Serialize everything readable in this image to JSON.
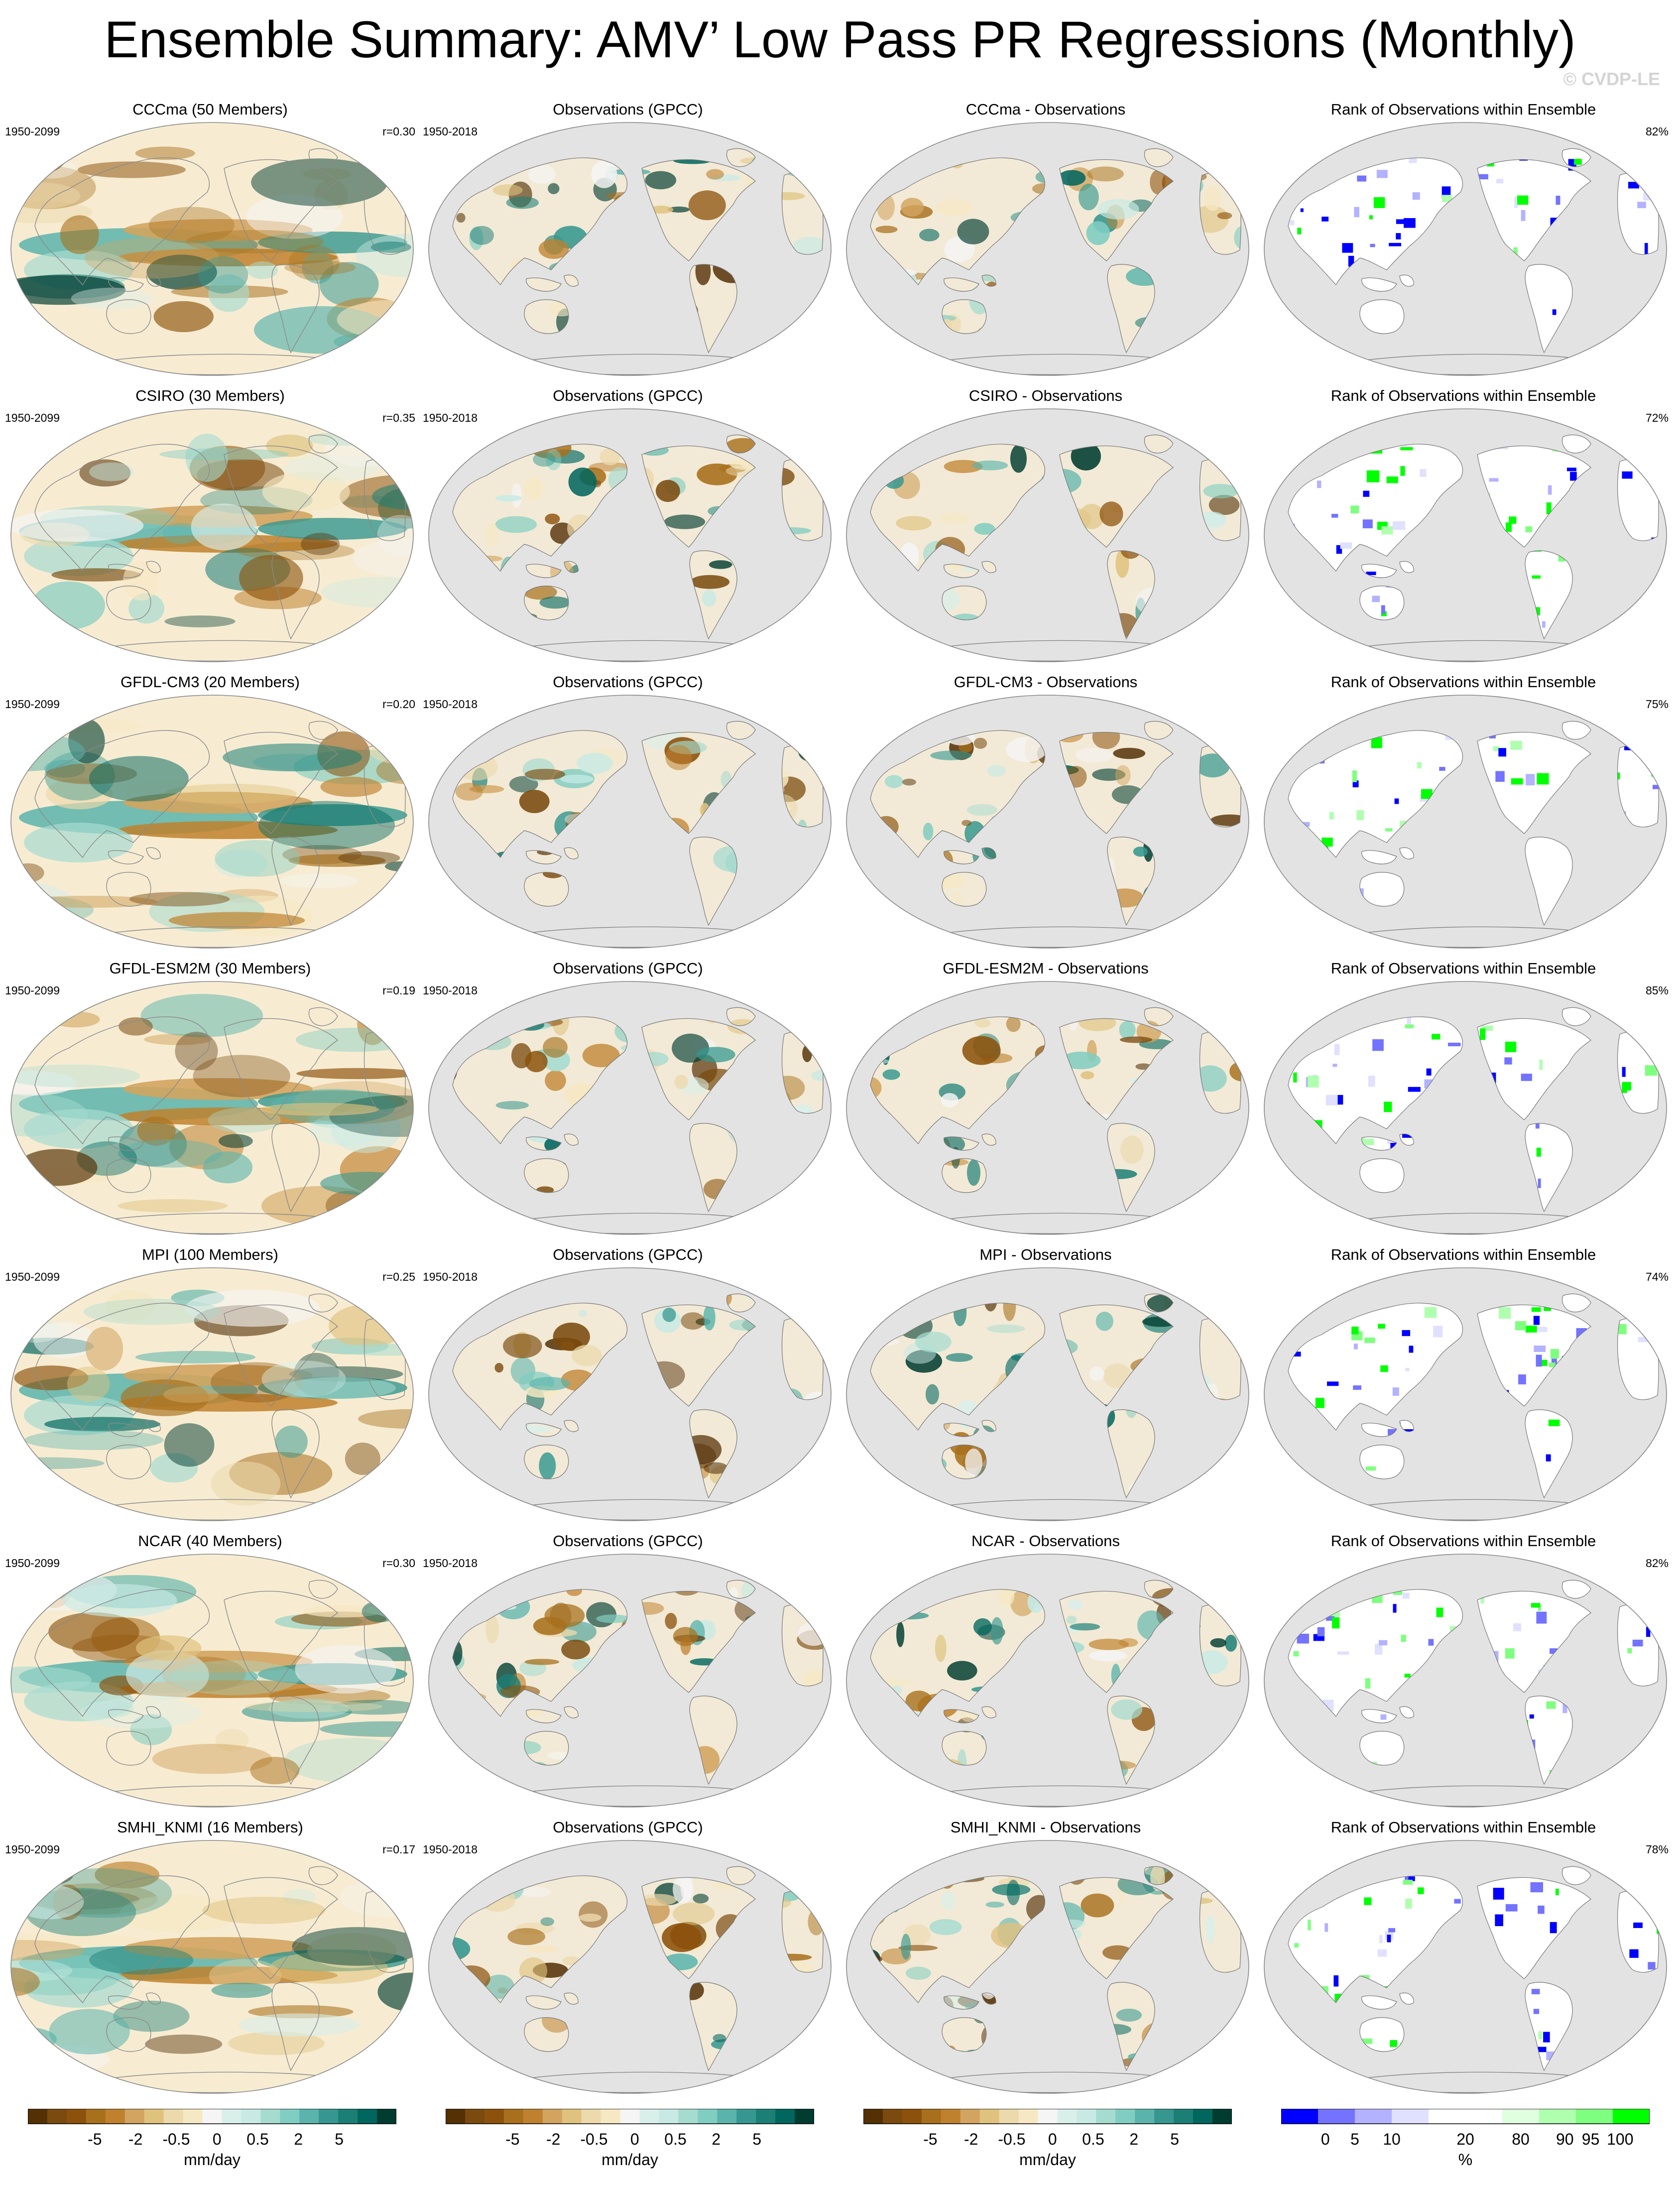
{
  "title": "Ensemble Summary: AMV’ Low Pass PR Regressions (Monthly)",
  "watermark": "© CVDP-LE",
  "column_titles": {
    "obs": "Observations (GPCC)",
    "rank": "Rank of Observations within Ensemble"
  },
  "periods": {
    "model": "1950-2099",
    "obs": "1950-2018"
  },
  "rows": [
    {
      "ens": "CCCma (50 Members)",
      "diff": "CCCma - Observations",
      "r": "r=0.30",
      "rank_pct": "82%"
    },
    {
      "ens": "CSIRO (30 Members)",
      "diff": "CSIRO - Observations",
      "r": "r=0.35",
      "rank_pct": "72%"
    },
    {
      "ens": "GFDL-CM3 (20 Members)",
      "diff": "GFDL-CM3 - Observations",
      "r": "r=0.20",
      "rank_pct": "75%"
    },
    {
      "ens": "GFDL-ESM2M (30 Members)",
      "diff": "GFDL-ESM2M - Observations",
      "r": "r=0.19",
      "rank_pct": "85%"
    },
    {
      "ens": "MPI (100 Members)",
      "diff": "MPI - Observations",
      "r": "r=0.25",
      "rank_pct": "74%"
    },
    {
      "ens": "NCAR (40 Members)",
      "diff": "NCAR - Observations",
      "r": "r=0.30",
      "rank_pct": "82%"
    },
    {
      "ens": "SMHI_KNMI (16 Members)",
      "diff": "SMHI_KNMI - Observations",
      "r": "r=0.17",
      "rank_pct": "78%"
    }
  ],
  "colorbars": {
    "pr": {
      "labels": [
        "-5",
        "-2",
        "-0.5",
        "0",
        "0.5",
        "2",
        "5"
      ],
      "units": "mm/day",
      "colors": [
        "#543005",
        "#7a4a0e",
        "#8c510a",
        "#a8701c",
        "#bf812d",
        "#d2a45f",
        "#dfc27d",
        "#ecd9ac",
        "#f6e8c3",
        "#f5f5f5",
        "#d9efea",
        "#c7eae5",
        "#a6dbd0",
        "#80cdc1",
        "#5ab4ac",
        "#35978f",
        "#1c7f76",
        "#01665e",
        "#003c30"
      ]
    },
    "rank": {
      "labels": [
        "0",
        "5",
        "10",
        "20",
        "80",
        "90",
        "95",
        "100"
      ],
      "units": "%",
      "colors": [
        "#0000ff",
        "#7373ff",
        "#b2b2ff",
        "#e0e0ff",
        "#ffffff",
        "#ffffff",
        "#dfffdf",
        "#afffaf",
        "#7fff7f",
        "#00ff00"
      ]
    }
  },
  "colors": {
    "ocean_gray": "#e3e3e3",
    "brown": "#a8701c",
    "teal": "#35978f",
    "rank_blue": "#0000ff",
    "rank_green": "#00ff00"
  }
}
